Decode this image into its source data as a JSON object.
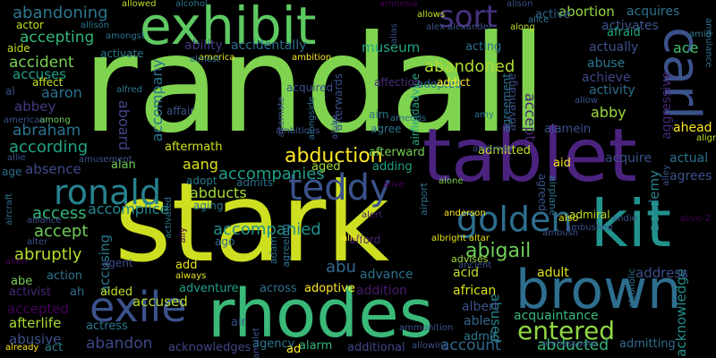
{
  "words": [
    {
      "text": "randall",
      "color": "#7fd34e"
    },
    {
      "text": "stark",
      "color": "#cddf20"
    },
    {
      "text": "tablet",
      "color": "#4b237f"
    },
    {
      "text": "rhodes",
      "color": "#3ab979"
    },
    {
      "text": "exhibit",
      "color": "#5ec962"
    },
    {
      "text": "brown",
      "color": "#2e6e8e"
    },
    {
      "text": "kit",
      "color": "#22928c"
    },
    {
      "text": "carl",
      "color": "#3b528b"
    },
    {
      "text": "exile",
      "color": "#3b528b"
    },
    {
      "text": "ronald",
      "color": "#26828e"
    },
    {
      "text": "teddy",
      "color": "#3b528b"
    },
    {
      "text": "golden",
      "color": "#2e6e8e"
    },
    {
      "text": "entered",
      "color": "#90d743"
    },
    {
      "text": "sort",
      "color": "#46327e"
    },
    {
      "text": "abduction",
      "color": "#fde725"
    },
    {
      "text": "accompanies",
      "color": "#1f9e89"
    },
    {
      "text": "accompanied",
      "color": "#21918c"
    },
    {
      "text": "abigail",
      "color": "#6ece58"
    },
    {
      "text": "abandoned",
      "color": "#addc30"
    },
    {
      "text": "abandoning",
      "color": "#2a788e"
    },
    {
      "text": "accepting",
      "color": "#35b779"
    },
    {
      "text": "accident",
      "color": "#7ad151"
    },
    {
      "text": "abraham",
      "color": "#2c738e"
    },
    {
      "text": "according",
      "color": "#20a386"
    },
    {
      "text": "access",
      "color": "#35b779"
    },
    {
      "text": "accept",
      "color": "#6ece58"
    },
    {
      "text": "abruptly",
      "color": "#b5de2b"
    },
    {
      "text": "accused",
      "color": "#b5de2b"
    },
    {
      "text": "abused",
      "color": "#26828e"
    },
    {
      "text": "abandon",
      "color": "#3f4788"
    },
    {
      "text": "account",
      "color": "#31688e"
    },
    {
      "text": "abducted",
      "color": "#35b779"
    },
    {
      "text": "museum",
      "color": "#21a585"
    },
    {
      "text": "aaron",
      "color": "#2c728e"
    },
    {
      "text": "abbey",
      "color": "#443983"
    },
    {
      "text": "abby",
      "color": "#9bd93c"
    },
    {
      "text": "abu",
      "color": "#31688e"
    },
    {
      "text": "aang",
      "color": "#dde318"
    },
    {
      "text": "abducts",
      "color": "#a5db36"
    },
    {
      "text": "accompany",
      "color": "#2c728e"
    },
    {
      "text": "accomplice",
      "color": "#24878e"
    },
    {
      "text": "accusing",
      "color": "#2a788e"
    },
    {
      "text": "ability",
      "color": "#443983"
    },
    {
      "text": "accidentally",
      "color": "#2e6e8e"
    },
    {
      "text": "accuses",
      "color": "#1fa187"
    },
    {
      "text": "accepted",
      "color": "#440154"
    },
    {
      "text": "abusive",
      "color": "#3b528b"
    },
    {
      "text": "afterlife",
      "color": "#aadc32"
    },
    {
      "text": "absence",
      "color": "#3e4a89"
    },
    {
      "text": "abortion",
      "color": "#93d741"
    },
    {
      "text": "acquires",
      "color": "#2c728e"
    },
    {
      "text": "activates",
      "color": "#3b528b"
    },
    {
      "text": "ace",
      "color": "#44bf70"
    },
    {
      "text": "accepts",
      "color": "#482677"
    },
    {
      "text": "aboard",
      "color": "#404588"
    },
    {
      "text": "academy",
      "color": "#26828e"
    },
    {
      "text": "acknowledge",
      "color": "#228d8d"
    },
    {
      "text": "address",
      "color": "#3e4c8a"
    },
    {
      "text": "adult",
      "color": "#e2e418"
    },
    {
      "text": "acid",
      "color": "#bddf26"
    },
    {
      "text": "advance",
      "color": "#2c728e"
    },
    {
      "text": "addition",
      "color": "#481a6c"
    },
    {
      "text": "african",
      "color": "#d8e219"
    },
    {
      "text": "albert",
      "color": "#3b528b"
    },
    {
      "text": "able",
      "color": "#31688e"
    },
    {
      "text": "acquaintance",
      "color": "#35b779"
    },
    {
      "text": "admit",
      "color": "#2a788e"
    },
    {
      "text": "actual",
      "color": "#2c728e"
    },
    {
      "text": "acquire",
      "color": "#3b528b"
    },
    {
      "text": "agrees",
      "color": "#3b528b"
    },
    {
      "text": "ahead",
      "color": "#fde725"
    },
    {
      "text": "aggressive",
      "color": "#482878"
    },
    {
      "text": "activity",
      "color": "#2e6e8e"
    },
    {
      "text": "achieve",
      "color": "#3f4788"
    },
    {
      "text": "abuse",
      "color": "#2a788e"
    },
    {
      "text": "actually",
      "color": "#3b528b"
    },
    {
      "text": "afraid",
      "color": "#22a884"
    },
    {
      "text": "acting",
      "color": "#2c728e"
    },
    {
      "text": "active",
      "color": "#31688e"
    },
    {
      "text": "admitting",
      "color": "#2e6e8e"
    },
    {
      "text": "acknowledges",
      "color": "#3f4788"
    },
    {
      "text": "agency",
      "color": "#2a788e"
    },
    {
      "text": "alarm",
      "color": "#35b779"
    },
    {
      "text": "additional",
      "color": "#3f4788"
    },
    {
      "text": "actress",
      "color": "#2a788e"
    },
    {
      "text": "adventure",
      "color": "#1fa187"
    },
    {
      "text": "across",
      "color": "#2c728e"
    },
    {
      "text": "adoptive",
      "color": "#fde725"
    },
    {
      "text": "aided",
      "color": "#bddf26"
    },
    {
      "text": "action",
      "color": "#2c728e"
    },
    {
      "text": "abe",
      "color": "#7ad151"
    },
    {
      "text": "activist",
      "color": "#482475"
    },
    {
      "text": "ah",
      "color": "#2e6e8e"
    },
    {
      "text": "air",
      "color": "#3b528b"
    },
    {
      "text": "act",
      "color": "#2a788e"
    },
    {
      "text": "ad",
      "color": "#fde725"
    },
    {
      "text": "agent",
      "color": "#3e4a89"
    },
    {
      "text": "add",
      "color": "#e5e419"
    },
    {
      "text": "aged",
      "color": "#a0da39"
    },
    {
      "text": "adding",
      "color": "#1fa187"
    },
    {
      "text": "admitted",
      "color": "#c2df23"
    },
    {
      "text": "aid",
      "color": "#fde725"
    },
    {
      "text": "afterward",
      "color": "#75d054"
    },
    {
      "text": "aftermath",
      "color": "#d2e21b"
    },
    {
      "text": "alan",
      "color": "#6ece58"
    },
    {
      "text": "age",
      "color": "#2e6e8e"
    },
    {
      "text": "afford",
      "color": "#482475"
    },
    {
      "text": "ago",
      "color": "#31688e"
    },
    {
      "text": "adopt",
      "color": "#2a788e"
    },
    {
      "text": "admits",
      "color": "#2c728e"
    },
    {
      "text": "aging",
      "color": "#2a788e"
    },
    {
      "text": "affair",
      "color": "#3b528b"
    },
    {
      "text": "activate",
      "color": "#2a788e"
    },
    {
      "text": "actor",
      "color": "#bddf26"
    },
    {
      "text": "aide",
      "color": "#c2df23"
    },
    {
      "text": "affect",
      "color": "#c8e020"
    },
    {
      "text": "al",
      "color": "#3b528b"
    },
    {
      "text": "aim",
      "color": "#2c728e"
    },
    {
      "text": "agree",
      "color": "#2c728e"
    },
    {
      "text": "adopted",
      "color": "#2e6e8e"
    },
    {
      "text": "advantage",
      "color": "#3b528b"
    },
    {
      "text": "agreement",
      "color": "#2c728e"
    },
    {
      "text": "alamein",
      "color": "#3b528b"
    },
    {
      "text": "airfieldadvice",
      "color": "#22a884"
    },
    {
      "text": "affection",
      "color": "#472d7b"
    },
    {
      "text": "addict",
      "color": "#fde725"
    },
    {
      "text": "afterwards",
      "color": "#3b528b"
    },
    {
      "text": "acquired",
      "color": "#3b528b"
    },
    {
      "text": "allowed",
      "color": "#bddf26"
    },
    {
      "text": "alcohol",
      "color": "#2a788e"
    },
    {
      "text": "alison",
      "color": "#3b528b"
    },
    {
      "text": "amnesia",
      "color": "#440154"
    },
    {
      "text": "ambition",
      "color": "#fde725"
    },
    {
      "text": "america",
      "color": "#e5e419"
    },
    {
      "text": "alfred",
      "color": "#2a788e"
    },
    {
      "text": "alive",
      "color": "#440154"
    },
    {
      "text": "alive-2",
      "color": "#440154"
    },
    {
      "text": "ambulance",
      "color": "#2e6e8e"
    },
    {
      "text": "alone",
      "color": "#7ad151"
    },
    {
      "text": "airport",
      "color": "#2e6e8e"
    },
    {
      "text": "anderson",
      "color": "#fde725"
    },
    {
      "text": "also",
      "color": "#e5e419"
    },
    {
      "text": "alien",
      "color": "#fde725"
    },
    {
      "text": "albright altar",
      "color": "#e5e419"
    },
    {
      "text": "admiral",
      "color": "#bddf26"
    },
    {
      "text": "alert",
      "color": "#481a6c"
    },
    {
      "text": "agreed",
      "color": "#3b528b"
    },
    {
      "text": "airplane",
      "color": "#2a788e"
    },
    {
      "text": "advises",
      "color": "#a0da39"
    },
    {
      "text": "adam",
      "color": "#2c728e"
    },
    {
      "text": "agreeing",
      "color": "#2c728e"
    },
    {
      "text": "among",
      "color": "#6ece58"
    },
    {
      "text": "amy",
      "color": "#2c728e"
    },
    {
      "text": "allen",
      "color": "#440154"
    },
    {
      "text": "alpha",
      "color": "#3b528b"
    },
    {
      "text": "alex alexander",
      "color": "#3b528b"
    },
    {
      "text": "allows",
      "color": "#c2df23"
    },
    {
      "text": "along",
      "color": "#bddf26"
    },
    {
      "text": "alice",
      "color": "#2c728e"
    },
    {
      "text": "amid",
      "color": "#2a788e"
    },
    {
      "text": "align",
      "color": "#bddf26"
    },
    {
      "text": "allow",
      "color": "#3b528b"
    },
    {
      "text": "always",
      "color": "#e5e419"
    },
    {
      "text": "ally",
      "color": "#440154"
    },
    {
      "text": "alley",
      "color": "#3b528b"
    },
    {
      "text": "ambassador",
      "color": "#3b528b"
    },
    {
      "text": "ambush",
      "color": "#3b528b"
    },
    {
      "text": "andie",
      "color": "#3b528b"
    },
    {
      "text": "alcoholic",
      "color": "#2c728e"
    },
    {
      "text": "ancient",
      "color": "#3b528b"
    },
    {
      "text": "amends",
      "color": "#2c728e"
    },
    {
      "text": "ambitious",
      "color": "#3b528b"
    },
    {
      "text": "almost",
      "color": "#2c728e"
    },
    {
      "text": "allison",
      "color": "#2a788e"
    },
    {
      "text": "amongst",
      "color": "#2c728e"
    },
    {
      "text": "american",
      "color": "#3b528b"
    },
    {
      "text": "allie",
      "color": "#3b528b"
    },
    {
      "text": "amusement",
      "color": "#3b528b"
    },
    {
      "text": "alliance",
      "color": "#3b528b"
    },
    {
      "text": "alter",
      "color": "#3b528b"
    },
    {
      "text": "aircraft",
      "color": "#2e6e8e"
    },
    {
      "text": "already",
      "color": "#fde725"
    },
    {
      "text": "amulet",
      "color": "#3b528b"
    },
    {
      "text": "ammunition",
      "color": "#3b528b"
    },
    {
      "text": "allowing",
      "color": "#3b528b"
    },
    {
      "text": "ambrose",
      "color": "#3b528b"
    },
    {
      "text": "ambushed",
      "color": "#3b528b"
    },
    {
      "text": "alternate",
      "color": "#3b528b"
    },
    {
      "text": "alias",
      "color": "#3b528b"
    },
    {
      "text": "alongside",
      "color": "#2c728e"
    },
    {
      "text": "activated",
      "color": "#2a788e"
    }
  ]
}
